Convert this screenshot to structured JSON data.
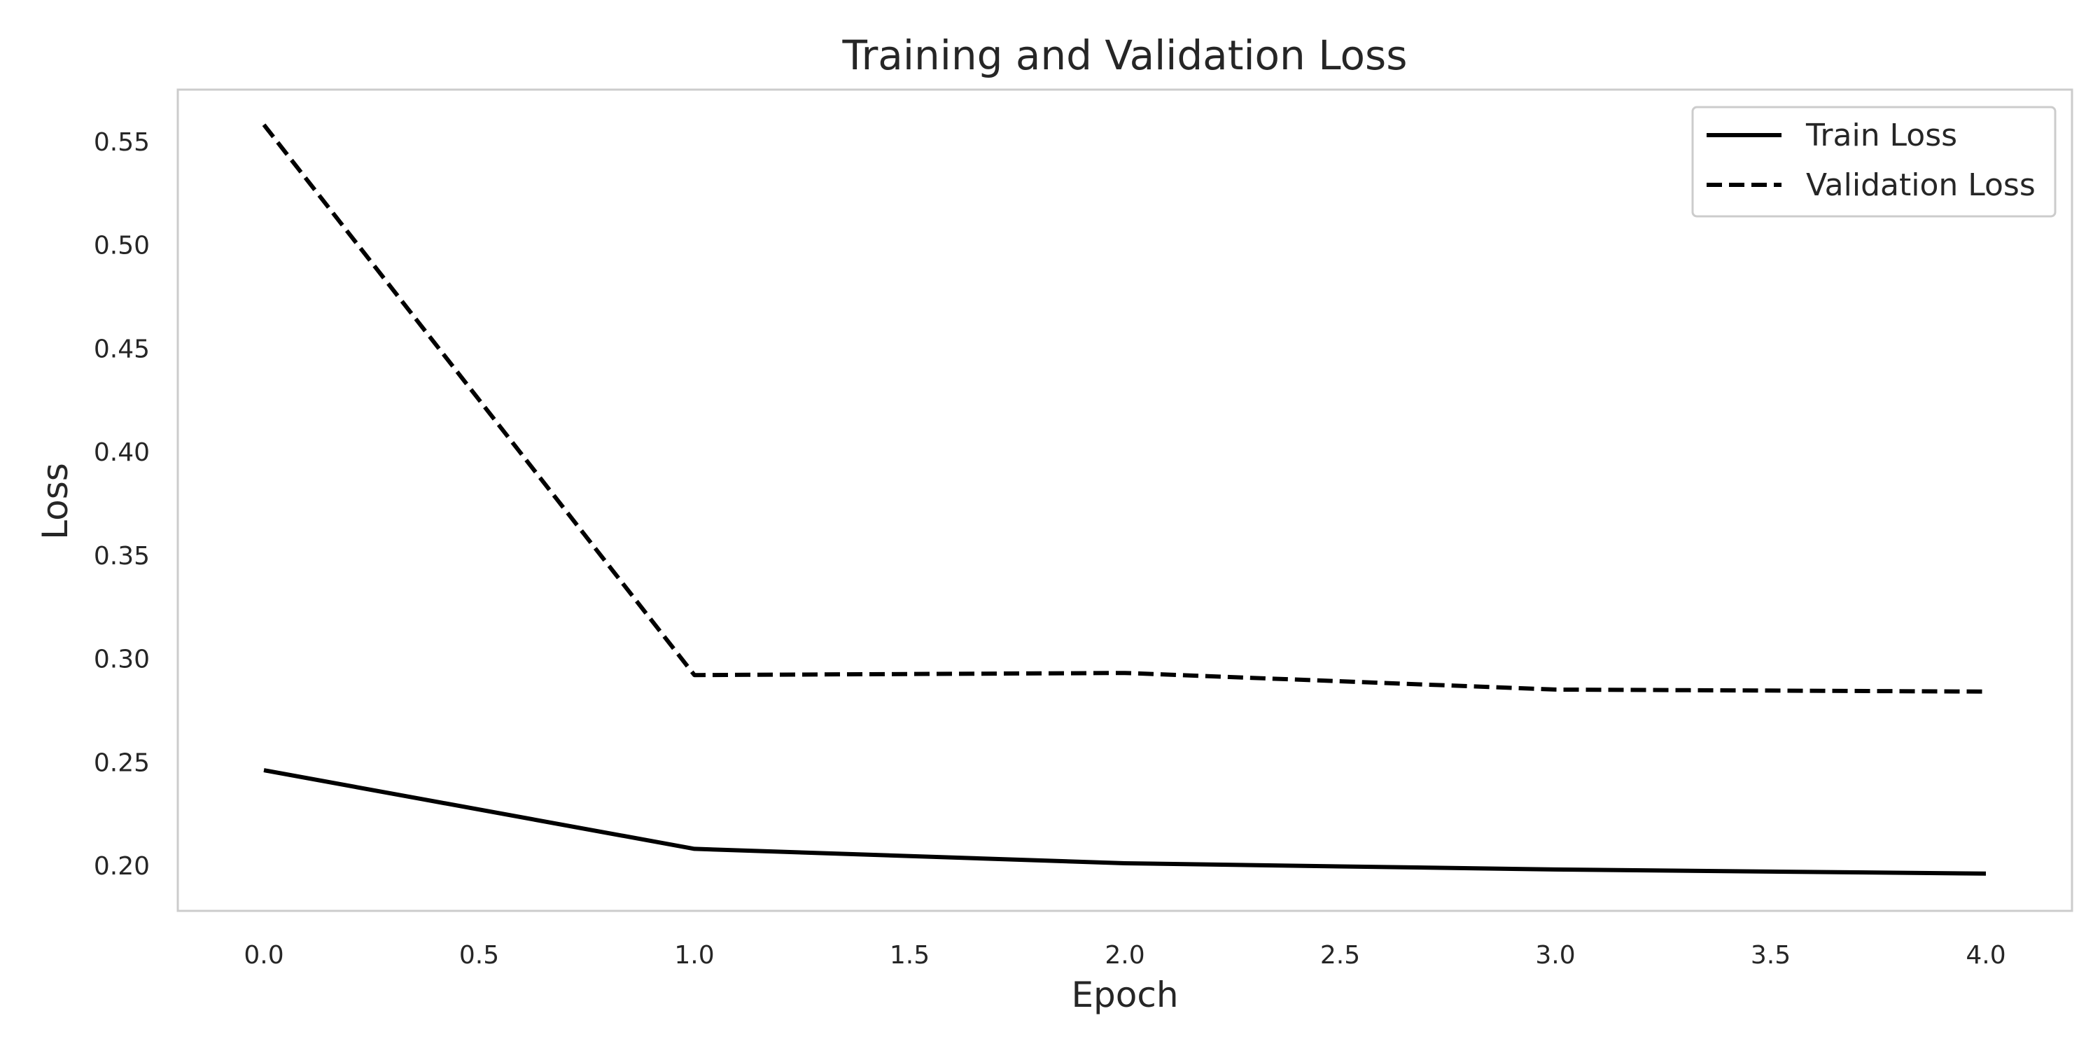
{
  "chart_data": {
    "type": "line",
    "title": "Training and Validation Loss",
    "xlabel": "Epoch",
    "ylabel": "Loss",
    "x": [
      0,
      1,
      2,
      3,
      4
    ],
    "xlim": [
      -0.2,
      4.2
    ],
    "ylim": [
      0.178,
      0.575
    ],
    "xticks": [
      0.0,
      0.5,
      1.0,
      1.5,
      2.0,
      2.5,
      3.0,
      3.5,
      4.0
    ],
    "xtick_labels": [
      "0.0",
      "0.5",
      "1.0",
      "1.5",
      "2.0",
      "2.5",
      "3.0",
      "3.5",
      "4.0"
    ],
    "yticks": [
      0.2,
      0.25,
      0.3,
      0.35,
      0.4,
      0.45,
      0.5,
      0.55
    ],
    "ytick_labels": [
      "0.20",
      "0.25",
      "0.30",
      "0.35",
      "0.40",
      "0.45",
      "0.50",
      "0.55"
    ],
    "grid": false,
    "legend_position": "top-right",
    "series": [
      {
        "name": "Train Loss",
        "style": "solid",
        "color": "#000000",
        "values": [
          0.246,
          0.208,
          0.201,
          0.198,
          0.196
        ]
      },
      {
        "name": "Validation Loss",
        "style": "dashed",
        "color": "#000000",
        "values": [
          0.558,
          0.292,
          0.293,
          0.285,
          0.284
        ]
      }
    ]
  }
}
